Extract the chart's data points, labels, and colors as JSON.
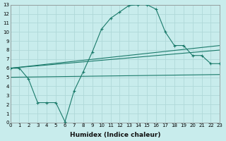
{
  "background_color": "#c8ecec",
  "grid_color": "#afd8d8",
  "line_color": "#1a7a6a",
  "x_min": 0,
  "x_max": 23,
  "y_min": 0,
  "y_max": 13,
  "xlabel": "Humidex (Indice chaleur)",
  "series": [
    {
      "x": [
        0,
        1,
        2,
        3,
        4,
        5,
        6,
        7,
        8,
        9,
        10,
        11,
        12,
        13,
        14,
        15,
        16,
        17,
        18,
        19,
        20,
        21,
        22,
        23
      ],
      "y": [
        6.0,
        6.0,
        4.8,
        2.2,
        2.2,
        2.2,
        0.1,
        3.5,
        5.6,
        7.8,
        10.3,
        11.5,
        12.2,
        12.9,
        13.0,
        13.0,
        12.5,
        10.0,
        8.5,
        8.5,
        7.4,
        7.4,
        6.5,
        6.5
      ],
      "has_markers": true
    },
    {
      "x": [
        0,
        23
      ],
      "y": [
        5.0,
        5.3
      ],
      "has_markers": false
    },
    {
      "x": [
        0,
        23
      ],
      "y": [
        6.0,
        8.0
      ],
      "has_markers": false
    },
    {
      "x": [
        0,
        23
      ],
      "y": [
        6.0,
        8.5
      ],
      "has_markers": false
    }
  ],
  "xticks": [
    0,
    1,
    2,
    3,
    4,
    5,
    6,
    7,
    8,
    9,
    10,
    11,
    12,
    13,
    14,
    15,
    16,
    17,
    18,
    19,
    20,
    21,
    22,
    23
  ],
  "yticks": [
    0,
    1,
    2,
    3,
    4,
    5,
    6,
    7,
    8,
    9,
    10,
    11,
    12,
    13
  ],
  "tick_fontsize": 5.0,
  "xlabel_fontsize": 6.5
}
